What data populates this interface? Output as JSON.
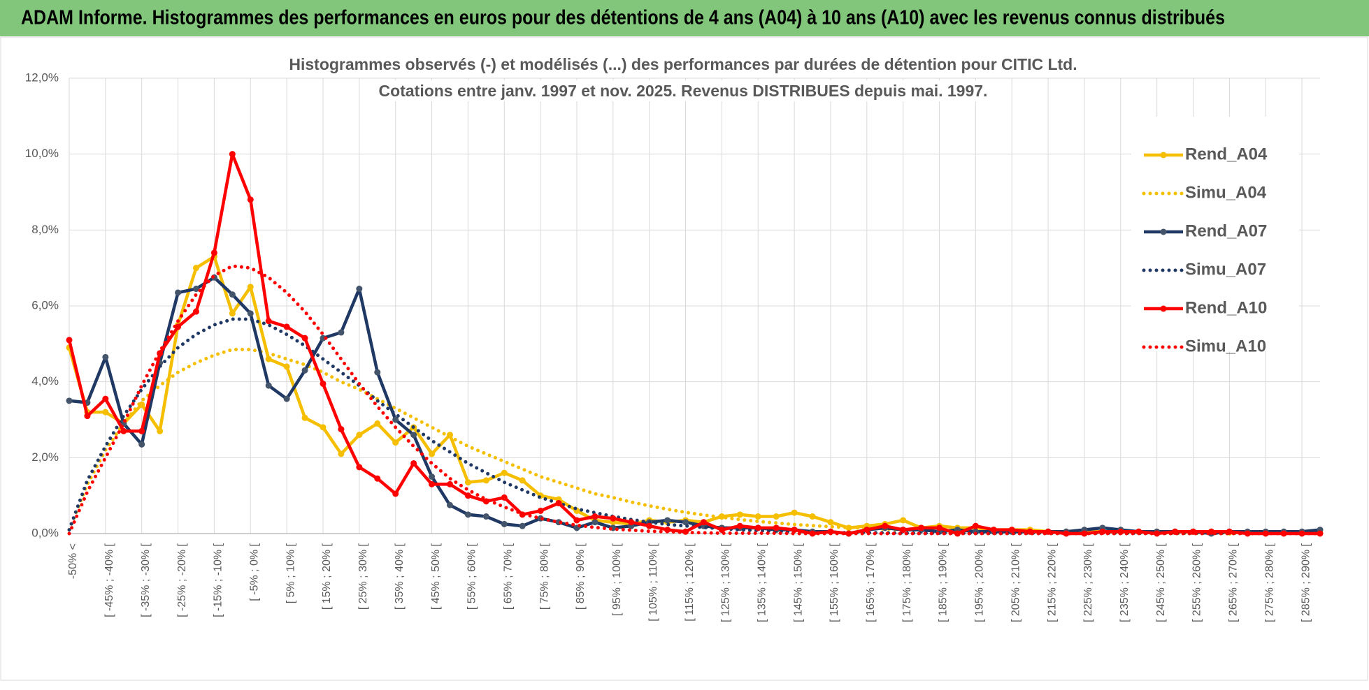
{
  "header": {
    "title": "ADAM Informe. Histogrammes des performances en euros pour des détentions de 4 ans (A04) à 10 ans (A10) avec les revenus connus distribués"
  },
  "chart_data": {
    "type": "line",
    "title": "Histogrammes observés (-) et modélisés (...) des performances par durées de détention pour CITIC Ltd.",
    "subtitle": "Cotations entre janv. 1997 et nov. 2025. Revenus DISTRIBUES depuis mai. 1997.",
    "categories": [
      "-50% <",
      null,
      "[ -45% ; -40% [",
      null,
      "[ -35% ; -30% [",
      null,
      "[ -25% ; -20% [",
      null,
      "[ -15% ; -10% [",
      null,
      "[ -5% ; 0% [",
      null,
      "[ 5% ; 10% [",
      null,
      "[ 15% ; 20% [",
      null,
      "[ 25% ; 30% [",
      null,
      "[ 35% ; 40% [",
      null,
      "[ 45% ; 50% [",
      null,
      "[ 55% ; 60% [",
      null,
      "[ 65% ; 70% [",
      null,
      "[ 75% ; 80% [",
      null,
      "[ 85% ; 90% [",
      null,
      "[ 95% ; 100% [",
      null,
      "[ 105% ; 110% [",
      null,
      "[ 115% ; 120% [",
      null,
      "[ 125% ; 130% [",
      null,
      "[ 135% ; 140% [",
      null,
      "[ 145% ; 150% [",
      null,
      "[ 155% ; 160% [",
      null,
      "[ 165% ; 170% [",
      null,
      "[ 175% ; 180% [",
      null,
      "[ 185% ; 190% [",
      null,
      "[ 195% ; 200% [",
      null,
      "[ 205% ; 210% [",
      null,
      "[ 215% ; 220% [",
      null,
      "[ 225% ; 230% [",
      null,
      "[ 235% ; 240% [",
      null,
      "[ 245% ; 250% [",
      null,
      "[ 255% ; 260% [",
      null,
      "[ 265% ; 270% [",
      null,
      "[ 275% ; 280% [",
      null,
      "[ 285% ; 290% [",
      null
    ],
    "series": [
      {
        "name": "Rend_A04",
        "color": "#f5bf00",
        "style": "solid",
        "markers": true,
        "values": [
          4.9,
          3.2,
          3.2,
          2.9,
          3.4,
          2.7,
          5.5,
          7.0,
          7.3,
          5.8,
          6.5,
          4.6,
          4.4,
          3.05,
          2.8,
          2.1,
          2.6,
          2.9,
          2.4,
          2.8,
          2.1,
          2.6,
          1.35,
          1.4,
          1.6,
          1.4,
          1.0,
          0.9,
          0.6,
          0.35,
          0.3,
          0.25,
          0.35,
          0.3,
          0.35,
          0.3,
          0.45,
          0.5,
          0.45,
          0.45,
          0.55,
          0.45,
          0.3,
          0.15,
          0.2,
          0.25,
          0.35,
          0.15,
          0.2,
          0.15,
          0.15,
          0.1,
          0.1,
          0.1,
          0.05,
          0.05,
          0.05,
          0.05,
          0.05,
          0.05,
          0.05,
          0.05,
          0.05,
          0.05,
          0.03,
          0.03,
          0.03,
          0.03,
          0.02,
          0.02
        ]
      },
      {
        "name": "Simu_A04",
        "color": "#f5bf00",
        "style": "dotted",
        "markers": false,
        "values": [
          0.1,
          1.3,
          2.2,
          2.9,
          3.5,
          3.9,
          4.25,
          4.5,
          4.7,
          4.85,
          4.85,
          4.75,
          4.6,
          4.45,
          4.25,
          4.0,
          3.8,
          3.55,
          3.3,
          3.05,
          2.8,
          2.55,
          2.3,
          2.1,
          1.9,
          1.7,
          1.5,
          1.35,
          1.2,
          1.05,
          0.95,
          0.83,
          0.73,
          0.64,
          0.56,
          0.49,
          0.43,
          0.37,
          0.32,
          0.28,
          0.24,
          0.21,
          0.18,
          0.16,
          0.14,
          0.12,
          0.1,
          0.09,
          0.08,
          0.07,
          0.06,
          0.05,
          0.04,
          0.04,
          0.03,
          0.03,
          0.02,
          0.02,
          0.02,
          0.02,
          0.01,
          0.01,
          0.01,
          0.01,
          0.01,
          0.01,
          0.01,
          0.01,
          0.01,
          0.01
        ]
      },
      {
        "name": "Rend_A07",
        "color": "#1f3864",
        "style": "solid",
        "markers": true,
        "values": [
          3.5,
          3.45,
          4.65,
          2.9,
          2.35,
          4.5,
          6.35,
          6.45,
          6.75,
          6.3,
          5.8,
          3.9,
          3.55,
          4.3,
          5.15,
          5.3,
          6.45,
          4.25,
          3.0,
          2.6,
          1.5,
          0.75,
          0.5,
          0.45,
          0.25,
          0.2,
          0.4,
          0.3,
          0.15,
          0.3,
          0.15,
          0.2,
          0.3,
          0.35,
          0.3,
          0.2,
          0.15,
          0.15,
          0.15,
          0.1,
          0.1,
          0.05,
          0.05,
          0.0,
          0.1,
          0.15,
          0.1,
          0.1,
          0.05,
          0.1,
          0.05,
          0.05,
          0.05,
          0.05,
          0.05,
          0.05,
          0.1,
          0.15,
          0.1,
          0.05,
          0.05,
          0.05,
          0.05,
          0.0,
          0.05,
          0.05,
          0.05,
          0.05,
          0.05,
          0.1
        ]
      },
      {
        "name": "Simu_A07",
        "color": "#1f3864",
        "style": "dotted",
        "markers": false,
        "values": [
          0.1,
          1.4,
          2.3,
          3.1,
          3.8,
          4.4,
          4.9,
          5.25,
          5.5,
          5.65,
          5.65,
          5.5,
          5.25,
          4.95,
          4.6,
          4.25,
          3.9,
          3.5,
          3.15,
          2.8,
          2.45,
          2.15,
          1.85,
          1.6,
          1.35,
          1.15,
          0.95,
          0.8,
          0.65,
          0.55,
          0.45,
          0.37,
          0.3,
          0.24,
          0.2,
          0.16,
          0.13,
          0.1,
          0.08,
          0.06,
          0.05,
          0.04,
          0.03,
          0.02,
          0.02,
          0.02,
          0.01,
          0.01,
          0.01,
          0.01,
          0.01,
          0.01,
          0.01,
          0.01,
          0.01,
          0.01,
          0.01,
          0.01,
          0.01,
          0.01,
          0.01,
          0.01,
          0.01,
          0.01,
          0.01,
          0.01,
          0.01,
          0.01,
          0.01,
          0.01
        ]
      },
      {
        "name": "Rend_A10",
        "color": "#ff0000",
        "style": "solid",
        "markers": true,
        "values": [
          5.1,
          3.1,
          3.55,
          2.7,
          2.7,
          4.75,
          5.45,
          5.85,
          7.4,
          10.0,
          8.8,
          5.6,
          5.45,
          5.15,
          3.95,
          2.75,
          1.75,
          1.45,
          1.05,
          1.85,
          1.3,
          1.3,
          1.0,
          0.85,
          0.95,
          0.5,
          0.6,
          0.8,
          0.35,
          0.45,
          0.4,
          0.3,
          0.2,
          0.1,
          0.05,
          0.3,
          0.1,
          0.2,
          0.15,
          0.15,
          0.1,
          0.0,
          0.05,
          0.0,
          0.1,
          0.2,
          0.1,
          0.15,
          0.15,
          0.0,
          0.2,
          0.1,
          0.1,
          0.05,
          0.05,
          0.0,
          0.0,
          0.05,
          0.05,
          0.05,
          0.0,
          0.05,
          0.05,
          0.05,
          0.05,
          0.0,
          0.0,
          0.0,
          0.0,
          0.0
        ]
      },
      {
        "name": "Simu_A10",
        "color": "#ff0000",
        "style": "dotted",
        "markers": false,
        "values": [
          0.0,
          1.1,
          2.0,
          2.9,
          3.9,
          4.8,
          5.6,
          6.3,
          6.8,
          7.05,
          7.0,
          6.75,
          6.35,
          5.85,
          5.25,
          4.6,
          3.95,
          3.35,
          2.8,
          2.3,
          1.85,
          1.45,
          1.15,
          0.9,
          0.7,
          0.52,
          0.4,
          0.3,
          0.22,
          0.16,
          0.12,
          0.09,
          0.06,
          0.05,
          0.03,
          0.02,
          0.01,
          0.01,
          0.01,
          0.01,
          0,
          0,
          0,
          0,
          0,
          0,
          0,
          0,
          0,
          0,
          0,
          0,
          0,
          0,
          0,
          0,
          0,
          0,
          0,
          0,
          0,
          0,
          0,
          0,
          0,
          0,
          0,
          0,
          0,
          0
        ]
      }
    ],
    "ylim": [
      0,
      12
    ],
    "yticks": [
      {
        "value": 0,
        "label": "0,0%"
      },
      {
        "value": 2,
        "label": "2,0%"
      },
      {
        "value": 4,
        "label": "4,0%"
      },
      {
        "value": 6,
        "label": "6,0%"
      },
      {
        "value": 8,
        "label": "8,0%"
      },
      {
        "value": 10,
        "label": "10,0%"
      },
      {
        "value": 12,
        "label": "12,0%"
      }
    ],
    "grid": true,
    "legend": "right"
  }
}
